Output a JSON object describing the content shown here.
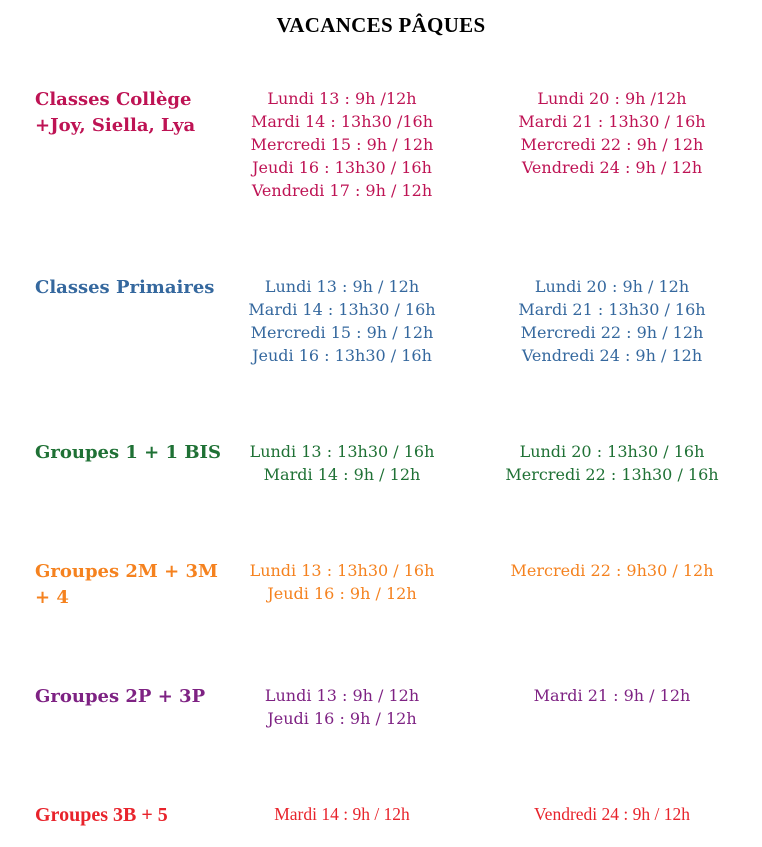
{
  "title": "VACANCES PÂQUES",
  "sections": [
    {
      "id": "classes-college",
      "color": "#BE1354",
      "heading": "Classes Collège\n+Joy, Siella, Lya",
      "week1": [
        "Lundi 13 : 9h /12h",
        "Mardi 14 : 13h30 /16h",
        "Mercredi 15 : 9h / 12h",
        "Jeudi 16 : 13h30 / 16h",
        "Vendredi 17 : 9h / 12h"
      ],
      "week2": [
        "Lundi 20 : 9h /12h",
        "Mardi 21 : 13h30 / 16h",
        "Mercredi 22 : 9h / 12h",
        "Vendredi 24 : 9h / 12h"
      ]
    },
    {
      "id": "classes-primaires",
      "color": "#35689E",
      "heading": "Classes Primaires",
      "week1": [
        "Lundi 13 : 9h / 12h",
        "Mardi 14 : 13h30 / 16h",
        "Mercredi 15 : 9h / 12h",
        "Jeudi 16 : 13h30 / 16h"
      ],
      "week2": [
        "Lundi 20 : 9h / 12h",
        "Mardi 21 : 13h30 / 16h",
        "Mercredi 22 : 9h / 12h",
        "Vendredi 24 : 9h / 12h"
      ]
    },
    {
      "id": "groupes-1-1bis",
      "color": "#1F7135",
      "heading": "Groupes 1 + 1 BIS",
      "week1": [
        "Lundi 13 : 13h30 / 16h",
        "Mardi 14 : 9h / 12h"
      ],
      "week2": [
        "Lundi 20 : 13h30 / 16h",
        "Mercredi 22 : 13h30 / 16h"
      ]
    },
    {
      "id": "groupes-2m-3m-4",
      "color": "#F5821F",
      "heading": "Groupes 2M + 3M\n+ 4",
      "week1": [
        "Lundi 13 : 13h30 / 16h",
        "Jeudi 16 : 9h / 12h"
      ],
      "week2": [
        "Mercredi 22 : 9h30 / 12h"
      ]
    },
    {
      "id": "groupes-2p-3p",
      "color": "#7E2283",
      "heading": "Groupes 2P + 3P",
      "week1": [
        "Lundi 13 : 9h / 12h",
        "Jeudi 16 : 9h / 12h"
      ],
      "week2": [
        "Mardi 21 : 9h / 12h"
      ]
    },
    {
      "id": "groupes-3b-5",
      "color": "#E8232B",
      "heading": "Groupes 3B + 5",
      "week1": [
        "Mardi 14 : 9h / 12h"
      ],
      "week2": [
        "Vendredi 24 : 9h / 12h"
      ]
    }
  ]
}
